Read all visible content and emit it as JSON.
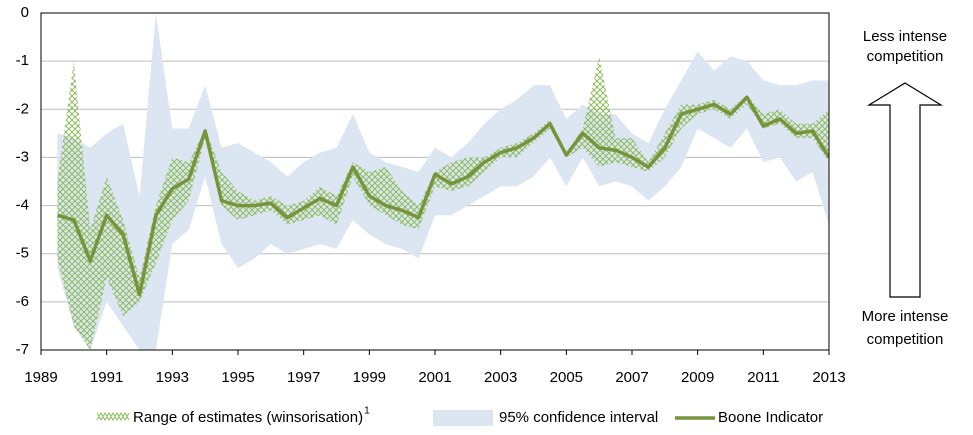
{
  "chart_data": {
    "type": "line",
    "xlim": [
      1989,
      2013
    ],
    "xticks": [
      1989,
      1991,
      1993,
      1995,
      1997,
      1999,
      2001,
      2003,
      2005,
      2007,
      2009,
      2011,
      2013
    ],
    "ylim": [
      -7,
      0
    ],
    "yticks": [
      0,
      -1,
      -2,
      -3,
      -4,
      -5,
      -6,
      -7
    ],
    "grid": true,
    "x": [
      1989.5,
      1990,
      1990.5,
      1991,
      1991.5,
      1992,
      1992.5,
      1993,
      1993.5,
      1994,
      1994.5,
      1995,
      1995.5,
      1996,
      1996.5,
      1997,
      1997.5,
      1998,
      1998.5,
      1999,
      1999.5,
      2000,
      2000.5,
      2001,
      2001.5,
      2002,
      2002.5,
      2003,
      2003.5,
      2004,
      2004.5,
      2005,
      2005.5,
      2006,
      2006.5,
      2007,
      2007.5,
      2008,
      2008.5,
      2009,
      2009.5,
      2010,
      2010.5,
      2011,
      2011.5,
      2012,
      2012.5,
      2013
    ],
    "series": [
      {
        "name": "Range of estimates (winsorisation)",
        "note": "1",
        "kind": "pattern-band",
        "color": "#8dbb5b",
        "upper": [
          -3.5,
          -1.0,
          -4.5,
          -3.4,
          -4.3,
          -5.5,
          -4.0,
          -3.0,
          -3.1,
          -2.4,
          -3.3,
          -3.7,
          -3.9,
          -3.8,
          -4.0,
          -3.9,
          -3.6,
          -3.8,
          -3.1,
          -3.3,
          -3.2,
          -3.7,
          -4.0,
          -3.3,
          -3.1,
          -3.0,
          -3.0,
          -2.8,
          -2.7,
          -2.5,
          -2.2,
          -2.9,
          -2.4,
          -0.9,
          -2.6,
          -2.6,
          -3.1,
          -2.5,
          -1.9,
          -1.9,
          -1.8,
          -2.0,
          -1.7,
          -2.1,
          -2.0,
          -2.3,
          -2.3,
          -2.0
        ],
        "lower": [
          -5.1,
          -6.5,
          -7.0,
          -5.5,
          -6.3,
          -6.0,
          -5.2,
          -4.3,
          -3.9,
          -2.6,
          -4.0,
          -4.3,
          -4.2,
          -4.1,
          -4.4,
          -4.3,
          -4.2,
          -4.4,
          -3.4,
          -4.0,
          -4.2,
          -4.4,
          -4.5,
          -3.6,
          -3.7,
          -3.6,
          -3.3,
          -3.0,
          -3.0,
          -2.7,
          -2.4,
          -3.0,
          -2.8,
          -3.2,
          -3.1,
          -3.2,
          -3.3,
          -3.0,
          -2.4,
          -2.1,
          -2.0,
          -2.2,
          -1.9,
          -2.4,
          -2.3,
          -2.6,
          -2.6,
          -3.1
        ]
      },
      {
        "name": "95% confidence interval",
        "kind": "band",
        "color": "#dce6f2",
        "upper": [
          -2.5,
          -2.6,
          -2.8,
          -2.5,
          -2.3,
          -3.8,
          0,
          -2.4,
          -2.4,
          -1.5,
          -2.8,
          -2.7,
          -2.9,
          -3.1,
          -3.4,
          -3.1,
          -2.9,
          -2.8,
          -2.1,
          -2.9,
          -3.1,
          -3.2,
          -3.3,
          -2.8,
          -3.0,
          -2.7,
          -2.3,
          -2.0,
          -1.8,
          -1.5,
          -1.5,
          -2.2,
          -1.9,
          -2.1,
          -2.1,
          -2.5,
          -2.7,
          -2.0,
          -1.4,
          -0.8,
          -1.2,
          -0.9,
          -1.0,
          -1.4,
          -1.5,
          -1.5,
          -1.4,
          -1.4
        ],
        "lower": [
          -5.3,
          -6.5,
          -7.0,
          -6.0,
          -6.5,
          -7.0,
          -7.0,
          -4.8,
          -4.5,
          -3.4,
          -4.8,
          -5.3,
          -5.1,
          -4.8,
          -5.0,
          -4.9,
          -4.8,
          -4.9,
          -4.3,
          -4.6,
          -4.8,
          -4.9,
          -5.1,
          -4.2,
          -4.2,
          -4.0,
          -3.8,
          -3.6,
          -3.6,
          -3.4,
          -3.0,
          -3.6,
          -3.0,
          -3.6,
          -3.5,
          -3.6,
          -3.9,
          -3.6,
          -3.2,
          -2.4,
          -2.6,
          -2.8,
          -2.4,
          -3.1,
          -3.0,
          -3.5,
          -3.3,
          -4.4
        ]
      },
      {
        "name": "Boone Indicator",
        "kind": "line",
        "color": "#77933c",
        "values": [
          -4.2,
          -4.3,
          -5.15,
          -4.2,
          -4.6,
          -5.85,
          -4.2,
          -3.65,
          -3.45,
          -2.45,
          -3.9,
          -4.0,
          -4.0,
          -3.95,
          -4.25,
          -4.05,
          -3.85,
          -4.0,
          -3.2,
          -3.8,
          -4.0,
          -4.1,
          -4.25,
          -3.35,
          -3.55,
          -3.4,
          -3.1,
          -2.9,
          -2.8,
          -2.6,
          -2.3,
          -2.95,
          -2.5,
          -2.8,
          -2.85,
          -3.0,
          -3.2,
          -2.8,
          -2.1,
          -2.0,
          -1.9,
          -2.1,
          -1.75,
          -2.35,
          -2.2,
          -2.5,
          -2.45,
          -3.0
        ]
      }
    ],
    "annotations": [
      {
        "lines": [
          "Less intense",
          "competition"
        ]
      },
      {
        "lines": [
          "More intense",
          "competition"
        ]
      }
    ]
  }
}
